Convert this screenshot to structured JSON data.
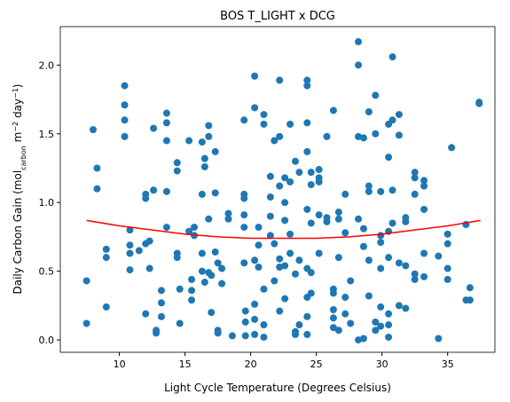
{
  "chart_data": {
    "type": "scatter",
    "title": "BOS T_LIGHT x DCG",
    "xlabel": "Light Cycle Temperature (Degrees Celsius)",
    "ylabel": [
      {
        "text": "Daily Carbon Gain (mol"
      },
      {
        "text": "carbon",
        "shift": "sub"
      },
      {
        "text": " m"
      },
      {
        "text": "−2",
        "shift": "super"
      },
      {
        "text": " day"
      },
      {
        "text": "−1",
        "shift": "super"
      },
      {
        "text": ")"
      }
    ],
    "xlim": [
      5.5,
      38.6
    ],
    "ylim": [
      -0.09,
      2.28
    ],
    "xticks": [
      10,
      15,
      20,
      25,
      30,
      35
    ],
    "yticks": [
      {
        "value": 0,
        "label": "0.0"
      },
      {
        "value": 0.5,
        "label": "0.5"
      },
      {
        "value": 1,
        "label": "1.0"
      },
      {
        "value": 1.5,
        "label": "1.5"
      },
      {
        "value": 2,
        "label": "2.0"
      }
    ],
    "series": [
      {
        "type": "scatter",
        "color": "#1f77b4",
        "x": [
          7.5,
          7.5,
          8,
          8.3,
          8.3,
          9,
          9,
          9,
          10.4,
          10.4,
          10.4,
          10.4,
          10.8,
          10.8,
          10.8,
          10.8,
          11.5,
          12,
          12,
          12,
          12,
          12.3,
          12.3,
          12.6,
          12.6,
          12.8,
          12.8,
          13.2,
          13.2,
          13.2,
          13.6,
          13.6,
          13.6,
          13.6,
          13.6,
          14.4,
          14.4,
          14.4,
          14.4,
          14.6,
          14.6,
          15.3,
          15.3,
          15.5,
          15.5,
          15.5,
          15.7,
          15.7,
          16.3,
          16.3,
          16.3,
          16.3,
          16.5,
          16.5,
          16.5,
          16.8,
          16.8,
          16.8,
          16.8,
          17,
          17,
          17.3,
          17.3,
          17.3,
          17.5,
          17.5,
          17.5,
          17.8,
          17.8,
          18.3,
          18.3,
          18.6,
          19.5,
          19.5,
          19.5,
          19.5,
          19.5,
          19.5,
          19.6,
          19.6,
          19.6,
          20.3,
          20.3,
          20.3,
          20.3,
          20.3,
          20.3,
          20.6,
          20.6,
          20.6,
          21,
          21,
          21,
          21,
          21,
          21.5,
          21.5,
          21.5,
          21.5,
          21.8,
          21.8,
          21.8,
          22.2,
          22.2,
          22.2,
          22.2,
          22.2,
          22.2,
          22.6,
          22.6,
          22.6,
          22.6,
          22.6,
          23,
          23,
          23,
          23,
          23.4,
          23.4,
          23.4,
          23.4,
          23.7,
          23.7,
          23.7,
          24.3,
          24.3,
          24.3,
          24.3,
          24.3,
          24.3,
          24.3,
          24.3,
          24.3,
          24.6,
          24.6,
          24.6,
          24.6,
          24.6,
          25.2,
          25.2,
          25.2,
          25.2,
          25.2,
          25.8,
          25.8,
          25.8,
          26.3,
          26.3,
          26.3,
          26.3,
          26.3,
          26.3,
          26.7,
          26.7,
          26.7,
          26.7,
          27.2,
          27.2,
          27.2,
          27.2,
          27.6,
          27.6,
          28.2,
          28.2,
          28.2,
          28.2,
          28.2,
          28.6,
          28.6,
          28.6,
          28.6,
          29,
          29,
          29,
          29,
          29,
          29.5,
          29.5,
          29.5,
          29.5,
          29.9,
          29.9,
          29.9,
          29.9,
          29.9,
          29.9,
          30.5,
          30.5,
          30.5,
          30.5,
          30.5,
          30.5,
          30.5,
          30.8,
          30.8,
          30.8,
          30.8,
          31.3,
          31.3,
          31.3,
          31.3,
          31.8,
          31.8,
          31.8,
          31.8,
          32.5,
          32.5,
          32.5,
          32.5,
          32.5,
          33.2,
          33.2,
          33.2,
          33.2,
          33.2,
          34.3,
          34.3,
          35,
          35,
          35,
          35,
          35.3,
          36.4,
          36.4,
          36.7,
          36.7,
          37.4,
          37.4
        ],
        "values": [
          0.43,
          0.12,
          1.53,
          1.25,
          1.1,
          0.66,
          0.6,
          0.24,
          1.85,
          1.71,
          1.6,
          1.48,
          0.8,
          0.69,
          0.63,
          0.51,
          0.65,
          1.06,
          1.03,
          0.7,
          0.19,
          0.72,
          0.52,
          1.54,
          1.09,
          0.07,
          0.05,
          0.36,
          0.27,
          0.17,
          1.65,
          1.58,
          1.45,
          1.08,
          0.82,
          1.29,
          1.23,
          0.63,
          0.6,
          0.37,
          0.12,
          1.45,
          0.79,
          0.44,
          0.36,
          0.29,
          0.82,
          0.76,
          1.44,
          1.06,
          0.63,
          0.5,
          1.32,
          1.26,
          0.42,
          1.56,
          1.48,
          0.88,
          0.49,
          0.47,
          0.2,
          1.37,
          1.07,
          0.64,
          0.56,
          0.07,
          0.05,
          0.52,
          0.41,
          0.92,
          0.88,
          0.03,
          1.6,
          1.06,
          1.03,
          0.91,
          0.82,
          0.56,
          0.21,
          0.13,
          0.03,
          1.92,
          1.69,
          0.58,
          0.26,
          0.15,
          0.04,
          0.82,
          0.69,
          0.53,
          1.64,
          1.57,
          0.37,
          0.11,
          0.02,
          1.19,
          1.04,
          0.9,
          0.76,
          1.45,
          0.7,
          0.43,
          1.89,
          1.48,
          1.12,
          0.59,
          0.53,
          0.21,
          1.18,
          1.0,
          0.87,
          0.54,
          0.3,
          1.57,
          1.15,
          0.77,
          0.63,
          1.3,
          0.48,
          0.06,
          0.04,
          1.22,
          0.58,
          0.11,
          1.89,
          1.85,
          1.58,
          1.37,
          0.95,
          0.52,
          0.31,
          0.17,
          0.04,
          1.22,
          1.13,
          0.85,
          0.49,
          0.34,
          1.24,
          1.18,
          1.15,
          0.91,
          0.63,
          1.48,
          0.89,
          0.86,
          1.67,
          0.37,
          0.34,
          0.22,
          0.16,
          0.09,
          0.93,
          0.88,
          0.6,
          0.07,
          1.06,
          0.78,
          0.31,
          0.19,
          0.43,
          0.12,
          2.17,
          2.0,
          1.48,
          0.88,
          0.0,
          1.47,
          0.81,
          0.68,
          0.01,
          1.66,
          1.12,
          1.08,
          0.58,
          0.32,
          1.78,
          1.5,
          0.13,
          0.07,
          1.08,
          0.76,
          0.71,
          0.52,
          0.24,
          0.1,
          1.57,
          1.33,
          0.79,
          0.6,
          0.19,
          0.11,
          0.02,
          2.06,
          1.6,
          1.09,
          0.85,
          1.64,
          1.49,
          0.56,
          0.25,
          0.89,
          0.86,
          0.54,
          0.23,
          1.22,
          1.18,
          1.06,
          0.48,
          0.44,
          1.16,
          1.12,
          0.95,
          0.63,
          0.46,
          0.61,
          0.01,
          0.77,
          0.7,
          0.52,
          0.44,
          1.4,
          0.84,
          0.29,
          0.38,
          0.29,
          1.73,
          1.72
        ]
      },
      {
        "type": "line",
        "color": "#ff0000",
        "x": [
          7.5,
          10,
          12.5,
          15,
          17.5,
          20,
          22.5,
          25,
          27.5,
          30,
          32.5,
          35,
          37.5
        ],
        "values": [
          0.87,
          0.83,
          0.8,
          0.77,
          0.75,
          0.74,
          0.74,
          0.74,
          0.75,
          0.77,
          0.8,
          0.83,
          0.87
        ]
      }
    ]
  }
}
